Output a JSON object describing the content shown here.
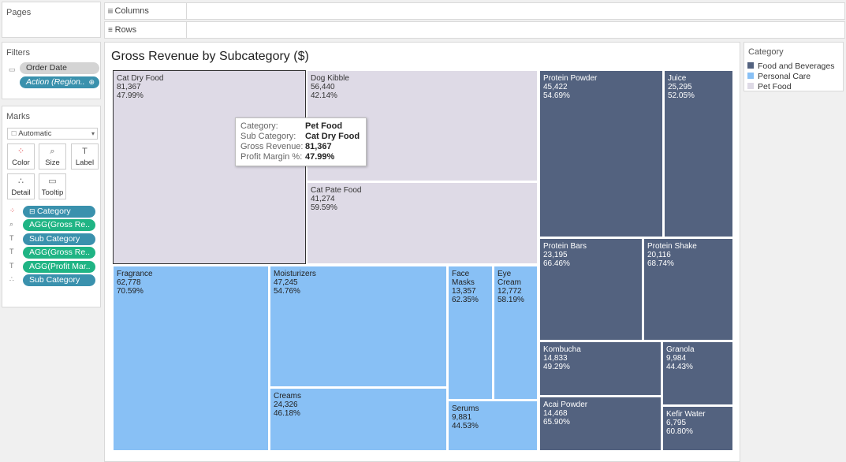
{
  "pages": {
    "title": "Pages"
  },
  "filters": {
    "title": "Filters",
    "items": [
      "Order Date",
      "Action (Region.."
    ]
  },
  "marks": {
    "title": "Marks",
    "type": "Automatic",
    "cards": [
      "Color",
      "Size",
      "Label",
      "Detail",
      "Tooltip"
    ],
    "pills": [
      {
        "label": "Category",
        "field_icon": "color-icon"
      },
      {
        "label": "AGG(Gross Re..",
        "field_icon": "size-icon"
      },
      {
        "label": "Sub Category",
        "field_icon": "label-icon"
      },
      {
        "label": "AGG(Gross Re..",
        "field_icon": "label-icon"
      },
      {
        "label": "AGG(Profit Mar..",
        "field_icon": "label-icon"
      },
      {
        "label": "Sub Category",
        "field_icon": "detail-icon"
      }
    ]
  },
  "shelves": {
    "columns": "Columns",
    "rows": "Rows"
  },
  "view": {
    "title": "Gross Revenue by Subcategory ($)"
  },
  "legend": {
    "title": "Category",
    "items": [
      {
        "label": "Food and Beverages",
        "color": "#53627f"
      },
      {
        "label": "Personal Care",
        "color": "#88c0f5"
      },
      {
        "label": "Pet Food",
        "color": "#dedae6"
      }
    ]
  },
  "chart_data": {
    "type": "treemap",
    "title": "Gross Revenue by Subcategory ($)",
    "categories": [
      "Food and Beverages",
      "Personal Care",
      "Pet Food"
    ],
    "tiles": [
      {
        "category": "Pet Food",
        "name": "Cat Dry Food",
        "revenue": "81,367",
        "margin": "47.99%"
      },
      {
        "category": "Pet Food",
        "name": "Dog Kibble",
        "revenue": "56,440",
        "margin": "42.14%"
      },
      {
        "category": "Pet Food",
        "name": "Cat Pate Food",
        "revenue": "41,274",
        "margin": "59.59%"
      },
      {
        "category": "Personal Care",
        "name": "Fragrance",
        "revenue": "62,778",
        "margin": "70.59%"
      },
      {
        "category": "Personal Care",
        "name": "Moisturizers",
        "revenue": "47,245",
        "margin": "54.76%"
      },
      {
        "category": "Personal Care",
        "name": "Creams",
        "revenue": "24,326",
        "margin": "46.18%"
      },
      {
        "category": "Personal Care",
        "name": "Face Masks",
        "revenue": "13,357",
        "margin": "62.35%"
      },
      {
        "category": "Personal Care",
        "name": "Eye Cream",
        "revenue": "12,772",
        "margin": "58.19%"
      },
      {
        "category": "Personal Care",
        "name": "Serums",
        "revenue": "9,881",
        "margin": "44.53%"
      },
      {
        "category": "Food and Beverages",
        "name": "Protein Powder",
        "revenue": "45,422",
        "margin": "54.69%"
      },
      {
        "category": "Food and Beverages",
        "name": "Juice",
        "revenue": "25,295",
        "margin": "52.05%"
      },
      {
        "category": "Food and Beverages",
        "name": "Protein Bars",
        "revenue": "23,195",
        "margin": "66.46%"
      },
      {
        "category": "Food and Beverages",
        "name": "Protein Shake",
        "revenue": "20,116",
        "margin": "68.74%"
      },
      {
        "category": "Food and Beverages",
        "name": "Kombucha",
        "revenue": "14,833",
        "margin": "49.29%"
      },
      {
        "category": "Food and Beverages",
        "name": "Granola",
        "revenue": "9,984",
        "margin": "44.43%"
      },
      {
        "category": "Food and Beverages",
        "name": "Acai Powder",
        "revenue": "14,468",
        "margin": "65.90%"
      },
      {
        "category": "Food and Beverages",
        "name": "Kefir Water",
        "revenue": "6,795",
        "margin": "60.80%"
      }
    ]
  },
  "tooltip": {
    "rows": [
      {
        "key": "Category:",
        "value": "Pet Food"
      },
      {
        "key": "Sub Category:",
        "value": "Cat Dry Food"
      },
      {
        "key": "Gross Revenue:",
        "value": "81,367"
      },
      {
        "key": "Profit Margin %:",
        "value": "47.99%"
      }
    ]
  }
}
